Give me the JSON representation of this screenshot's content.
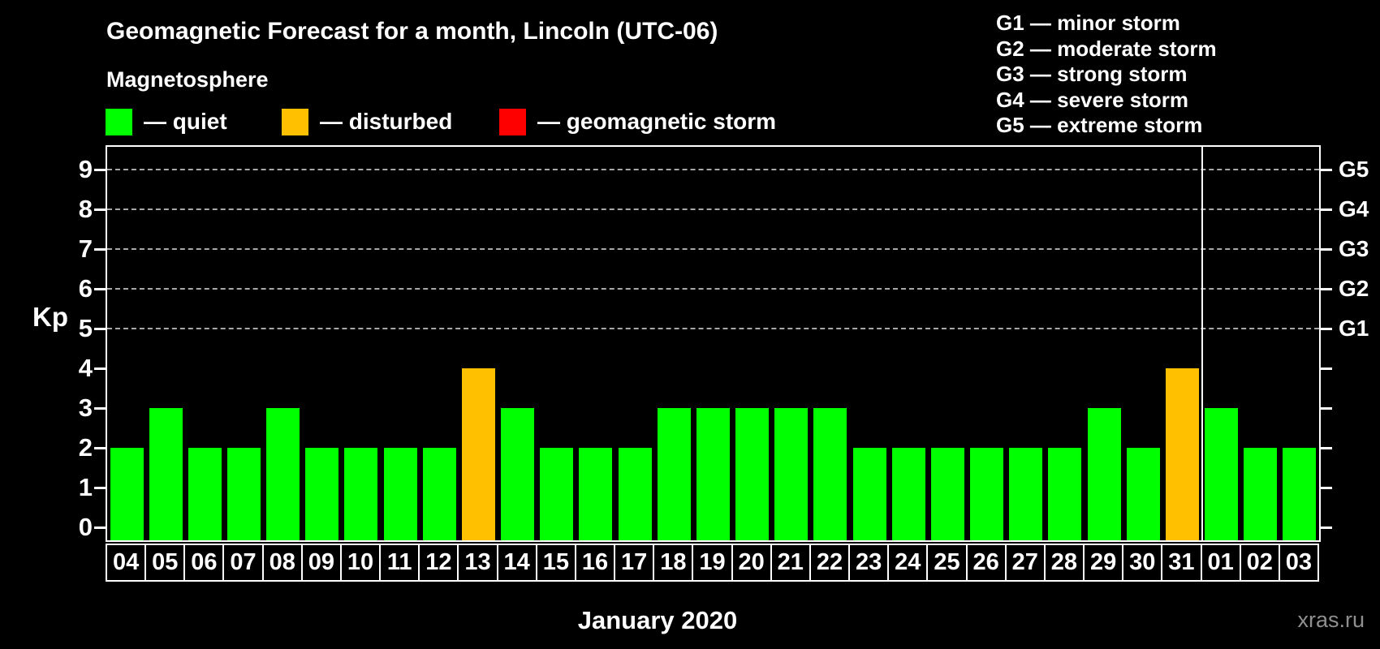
{
  "title": "Geomagnetic Forecast for a month, Lincoln (UTC-06)",
  "legend": {
    "title": "Magnetosphere",
    "items": [
      {
        "state": "quiet",
        "label": "— quiet",
        "color": "#00ff00"
      },
      {
        "state": "disturbed",
        "label": "— disturbed",
        "color": "#ffc000"
      },
      {
        "state": "storm",
        "label": "— geomagnetic storm",
        "color": "#ff0000"
      }
    ]
  },
  "g_legend": [
    "G1 — minor storm",
    "G2 — moderate storm",
    "G3 — strong storm",
    "G4 — severe storm",
    "G5 — extreme storm"
  ],
  "watermark": "xras.ru",
  "chart_data": {
    "type": "bar",
    "title": "Geomagnetic Forecast for a month, Lincoln (UTC-06)",
    "xlabel": "January 2020",
    "ylabel": "Kp",
    "ylim": [
      0,
      9.5
    ],
    "grid": "dashed horizontal gridlines at Kp 5,6,7,8,9",
    "legend_position": "top",
    "categories": [
      "04",
      "05",
      "06",
      "07",
      "08",
      "09",
      "10",
      "11",
      "12",
      "13",
      "14",
      "15",
      "16",
      "17",
      "18",
      "19",
      "20",
      "21",
      "22",
      "23",
      "24",
      "25",
      "26",
      "27",
      "28",
      "29",
      "30",
      "31",
      "01",
      "02",
      "03"
    ],
    "values": [
      2,
      3,
      2,
      2,
      3,
      2,
      2,
      2,
      2,
      4,
      3,
      2,
      2,
      2,
      3,
      3,
      3,
      3,
      3,
      2,
      2,
      2,
      2,
      2,
      2,
      3,
      2,
      4,
      3,
      2,
      2
    ],
    "states": [
      "quiet",
      "quiet",
      "quiet",
      "quiet",
      "quiet",
      "quiet",
      "quiet",
      "quiet",
      "quiet",
      "disturbed",
      "quiet",
      "quiet",
      "quiet",
      "quiet",
      "quiet",
      "quiet",
      "quiet",
      "quiet",
      "quiet",
      "quiet",
      "quiet",
      "quiet",
      "quiet",
      "quiet",
      "quiet",
      "quiet",
      "quiet",
      "disturbed",
      "quiet",
      "quiet",
      "quiet"
    ],
    "state_colors": {
      "quiet": "#00ff00",
      "disturbed": "#ffc000",
      "storm": "#ff0000"
    },
    "left_ticks": [
      0,
      1,
      2,
      3,
      4,
      5,
      6,
      7,
      8,
      9
    ],
    "right_axis_labels": {
      "5": "G1",
      "6": "G2",
      "7": "G3",
      "8": "G4",
      "9": "G5"
    },
    "month_boundary_after_index": 27
  }
}
